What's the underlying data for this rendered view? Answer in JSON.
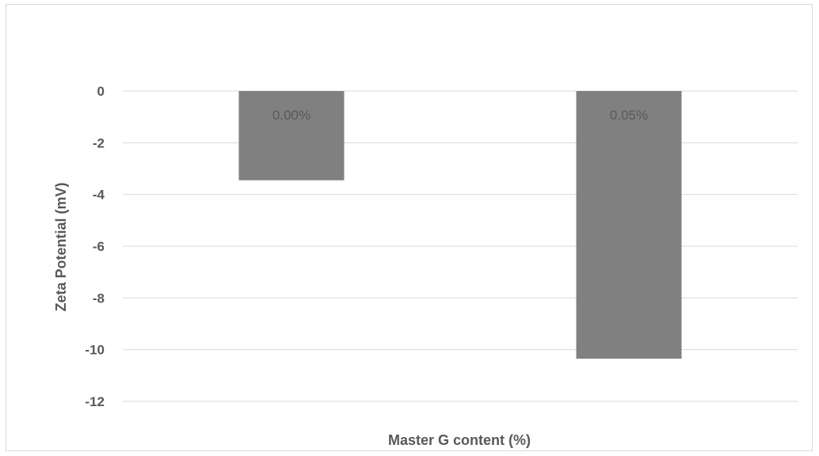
{
  "chart_data": {
    "type": "bar",
    "categories": [
      "0.00%",
      "0.05%"
    ],
    "values": [
      -3.45,
      -10.35
    ],
    "data_labels": [
      "0.00%",
      "0.05%"
    ],
    "title": "",
    "xlabel": "Master G content (%)",
    "ylabel": "Zeta Potential (mV)",
    "ylim": [
      -12,
      0
    ],
    "yticks": [
      0,
      -2,
      -4,
      -6,
      -8,
      -10,
      -12
    ],
    "ytick_labels": [
      "0",
      "-2",
      "-4",
      "-6",
      "-8",
      "-10",
      "-12"
    ],
    "grid": true,
    "legend": "none",
    "colors": {
      "bar": "#808080",
      "grid": "#d9d9d9",
      "text": "#595959"
    }
  }
}
